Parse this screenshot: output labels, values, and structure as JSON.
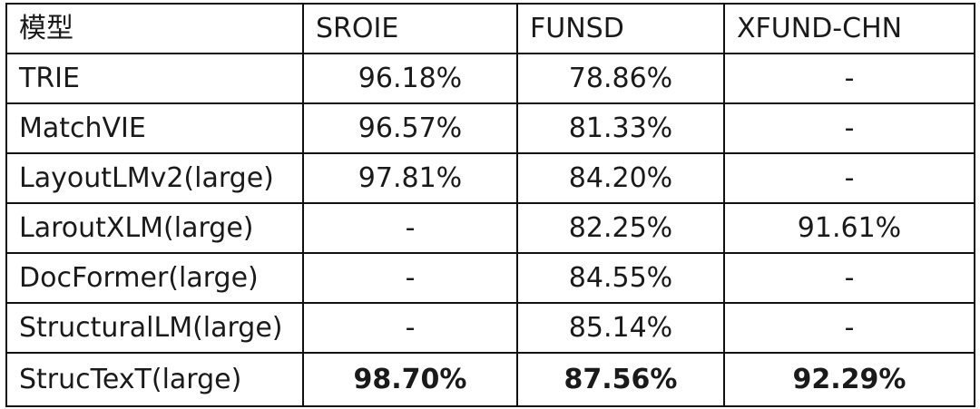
{
  "chart_data": {
    "type": "table",
    "columns": [
      "模型",
      "SROIE",
      "FUNSD",
      "XFUND-CHN"
    ],
    "rows": [
      {
        "model": "TRIE",
        "values": [
          "96.18%",
          "78.86%",
          "-"
        ],
        "bold": false
      },
      {
        "model": "MatchVIE",
        "values": [
          "96.57%",
          "81.33%",
          "-"
        ],
        "bold": false
      },
      {
        "model": "LayoutLMv2(large)",
        "values": [
          "97.81%",
          "84.20%",
          "-"
        ],
        "bold": false
      },
      {
        "model": "LaroutXLM(large)",
        "values": [
          "-",
          "82.25%",
          "91.61%"
        ],
        "bold": false
      },
      {
        "model": "DocFormer(large)",
        "values": [
          "-",
          "84.55%",
          "-"
        ],
        "bold": false
      },
      {
        "model": "StructuralLM(large)",
        "values": [
          "-",
          "85.14%",
          "-"
        ],
        "bold": false
      },
      {
        "model": "StrucTexT(large)",
        "values": [
          "98.70%",
          "87.56%",
          "92.29%"
        ],
        "bold": true
      }
    ]
  }
}
